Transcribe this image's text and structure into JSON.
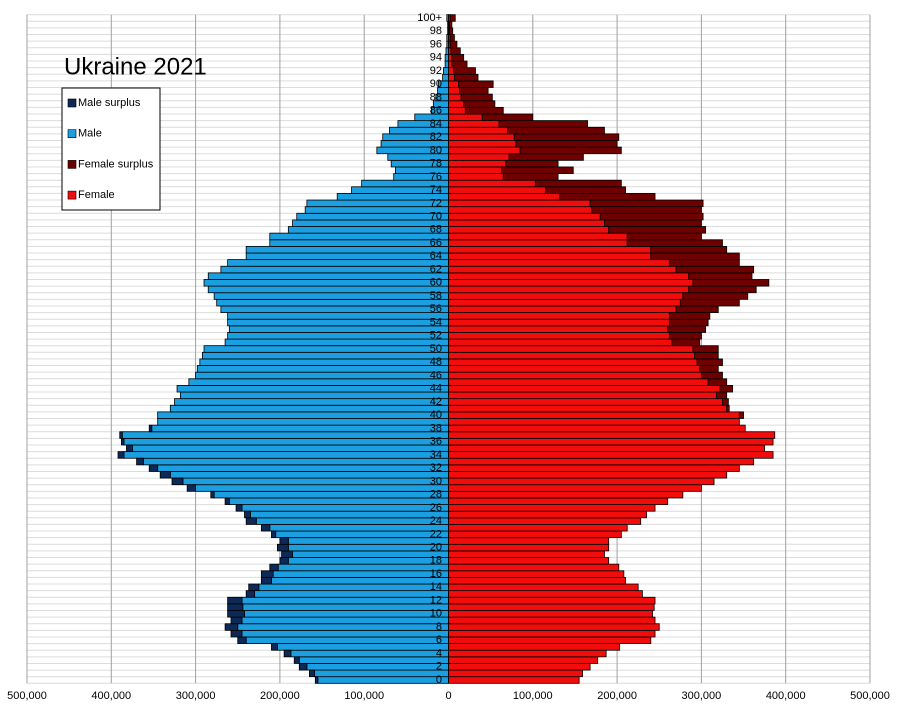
{
  "chart_data": {
    "type": "pyramid",
    "title": "Ukraine 2021",
    "categories": [
      "0",
      null,
      "2",
      null,
      "4",
      null,
      "6",
      null,
      "8",
      null,
      "10",
      null,
      "12",
      null,
      "14",
      null,
      "16",
      null,
      "18",
      null,
      "20",
      null,
      "22",
      null,
      "24",
      null,
      "26",
      null,
      "28",
      null,
      "30",
      null,
      "32",
      null,
      "34",
      null,
      "36",
      null,
      "38",
      null,
      "40",
      null,
      "42",
      null,
      "44",
      null,
      "46",
      null,
      "48",
      null,
      "50",
      null,
      "52",
      null,
      "54",
      null,
      "56",
      null,
      "58",
      null,
      "60",
      null,
      "62",
      null,
      "64",
      null,
      "66",
      null,
      "68",
      null,
      "70",
      null,
      "72",
      null,
      "74",
      null,
      "76",
      null,
      "78",
      null,
      "80",
      null,
      "82",
      null,
      "84",
      null,
      "86",
      null,
      "88",
      null,
      "90",
      null,
      "92",
      null,
      "94",
      null,
      "96",
      null,
      "98",
      null,
      "100+"
    ],
    "series": [
      {
        "name": "Male surplus",
        "color": "#0c2957",
        "values": [
          3000,
          6000,
          9000,
          6000,
          8000,
          7000,
          10000,
          13000,
          15000,
          13000,
          20000,
          18000,
          17000,
          10000,
          12000,
          12000,
          14000,
          10000,
          10000,
          13000,
          13000,
          10000,
          5000,
          10000,
          12000,
          7000,
          7000,
          5000,
          4000,
          10000,
          13000,
          12000,
          10000,
          8000,
          7000,
          7000,
          3000,
          3000,
          3000,
          0,
          0,
          0,
          0,
          0,
          0,
          0,
          0,
          0,
          0,
          0,
          0,
          0,
          0,
          0,
          0,
          0,
          0,
          0,
          0,
          0,
          0,
          0,
          0,
          0,
          0,
          0,
          0,
          0,
          0,
          0,
          0,
          0,
          0,
          0,
          0,
          0,
          0,
          0,
          0,
          0,
          0,
          0,
          0,
          0,
          0,
          0,
          0,
          0,
          0,
          0,
          0,
          0,
          0,
          0,
          0,
          0,
          0,
          0,
          0,
          0,
          0
        ]
      },
      {
        "name": "Male",
        "color": "#1c9fe0",
        "values": [
          155000,
          159000,
          168000,
          177000,
          187000,
          203000,
          240000,
          245000,
          250000,
          245000,
          242000,
          244000,
          245000,
          230000,
          225000,
          210000,
          208000,
          202000,
          190000,
          185000,
          190000,
          190000,
          205000,
          212000,
          228000,
          235000,
          245000,
          260000,
          278000,
          300000,
          315000,
          330000,
          345000,
          362000,
          385000,
          375000,
          385000,
          387000,
          352000,
          345000,
          345000,
          330000,
          325000,
          318000,
          322000,
          308000,
          300000,
          298000,
          295000,
          292000,
          290000,
          265000,
          262000,
          260000,
          262000,
          262000,
          270000,
          275000,
          278000,
          285000,
          290000,
          285000,
          270000,
          262000,
          240000,
          240000,
          212000,
          212000,
          190000,
          185000,
          180000,
          170000,
          168000,
          132000,
          115000,
          103000,
          65000,
          63000,
          68000,
          72000,
          85000,
          80000,
          78000,
          70000,
          60000,
          40000,
          20000,
          18000,
          15000,
          13000,
          12000,
          7000,
          6000,
          4000,
          4000,
          3000,
          2000,
          2000,
          1000,
          1000,
          2000
        ]
      },
      {
        "name": "Female surplus",
        "color": "#6e0000",
        "values": [
          0,
          0,
          0,
          0,
          0,
          0,
          0,
          0,
          0,
          0,
          0,
          0,
          0,
          0,
          0,
          0,
          0,
          0,
          0,
          0,
          0,
          0,
          0,
          0,
          0,
          0,
          0,
          0,
          0,
          0,
          0,
          0,
          0,
          0,
          0,
          0,
          0,
          0,
          0,
          0,
          5000,
          3000,
          7000,
          12000,
          15000,
          22000,
          25000,
          22000,
          30000,
          28000,
          30000,
          33000,
          38000,
          45000,
          46000,
          48000,
          50000,
          70000,
          77000,
          80000,
          90000,
          75000,
          92000,
          83000,
          105000,
          90000,
          113000,
          88000,
          115000,
          115000,
          122000,
          130000,
          134000,
          113000,
          95000,
          102000,
          65000,
          85000,
          62000,
          88000,
          120000,
          120000,
          124000,
          115000,
          105000,
          60000,
          45000,
          37000,
          37000,
          34000,
          41000,
          28000,
          26000,
          18000,
          14000,
          11000,
          8000,
          5000,
          4000,
          3000,
          6000
        ]
      },
      {
        "name": "Female",
        "color": "#f20d0d",
        "values": [
          155000,
          159000,
          168000,
          177000,
          187000,
          203000,
          240000,
          245000,
          250000,
          245000,
          242000,
          244000,
          245000,
          230000,
          225000,
          210000,
          208000,
          202000,
          190000,
          185000,
          190000,
          190000,
          205000,
          212000,
          228000,
          235000,
          245000,
          260000,
          278000,
          300000,
          315000,
          330000,
          345000,
          362000,
          385000,
          375000,
          385000,
          387000,
          352000,
          345000,
          345000,
          330000,
          325000,
          318000,
          322000,
          308000,
          300000,
          298000,
          295000,
          292000,
          290000,
          265000,
          262000,
          260000,
          262000,
          262000,
          270000,
          275000,
          278000,
          285000,
          290000,
          285000,
          270000,
          262000,
          240000,
          240000,
          212000,
          212000,
          190000,
          185000,
          180000,
          170000,
          168000,
          132000,
          115000,
          103000,
          65000,
          63000,
          68000,
          72000,
          85000,
          80000,
          78000,
          70000,
          60000,
          40000,
          20000,
          18000,
          15000,
          13000,
          12000,
          7000,
          6000,
          4000,
          4000,
          3000,
          2000,
          2000,
          1000,
          1000,
          2000
        ]
      }
    ],
    "xlim": [
      -500000,
      500000
    ],
    "xticks": [
      {
        "value": -500000,
        "label": "500,000"
      },
      {
        "value": -400000,
        "label": "400,000"
      },
      {
        "value": -300000,
        "label": "300,000"
      },
      {
        "value": -200000,
        "label": "200,000"
      },
      {
        "value": -100000,
        "label": "100,000"
      },
      0,
      {
        "value": 100000,
        "label": "100,000"
      },
      {
        "value": 200000,
        "label": "200,000"
      },
      {
        "value": 300000,
        "label": "300,000"
      },
      {
        "value": 400000,
        "label": "400,000"
      },
      {
        "value": 500000,
        "label": "500,000"
      }
    ],
    "grid": true
  }
}
